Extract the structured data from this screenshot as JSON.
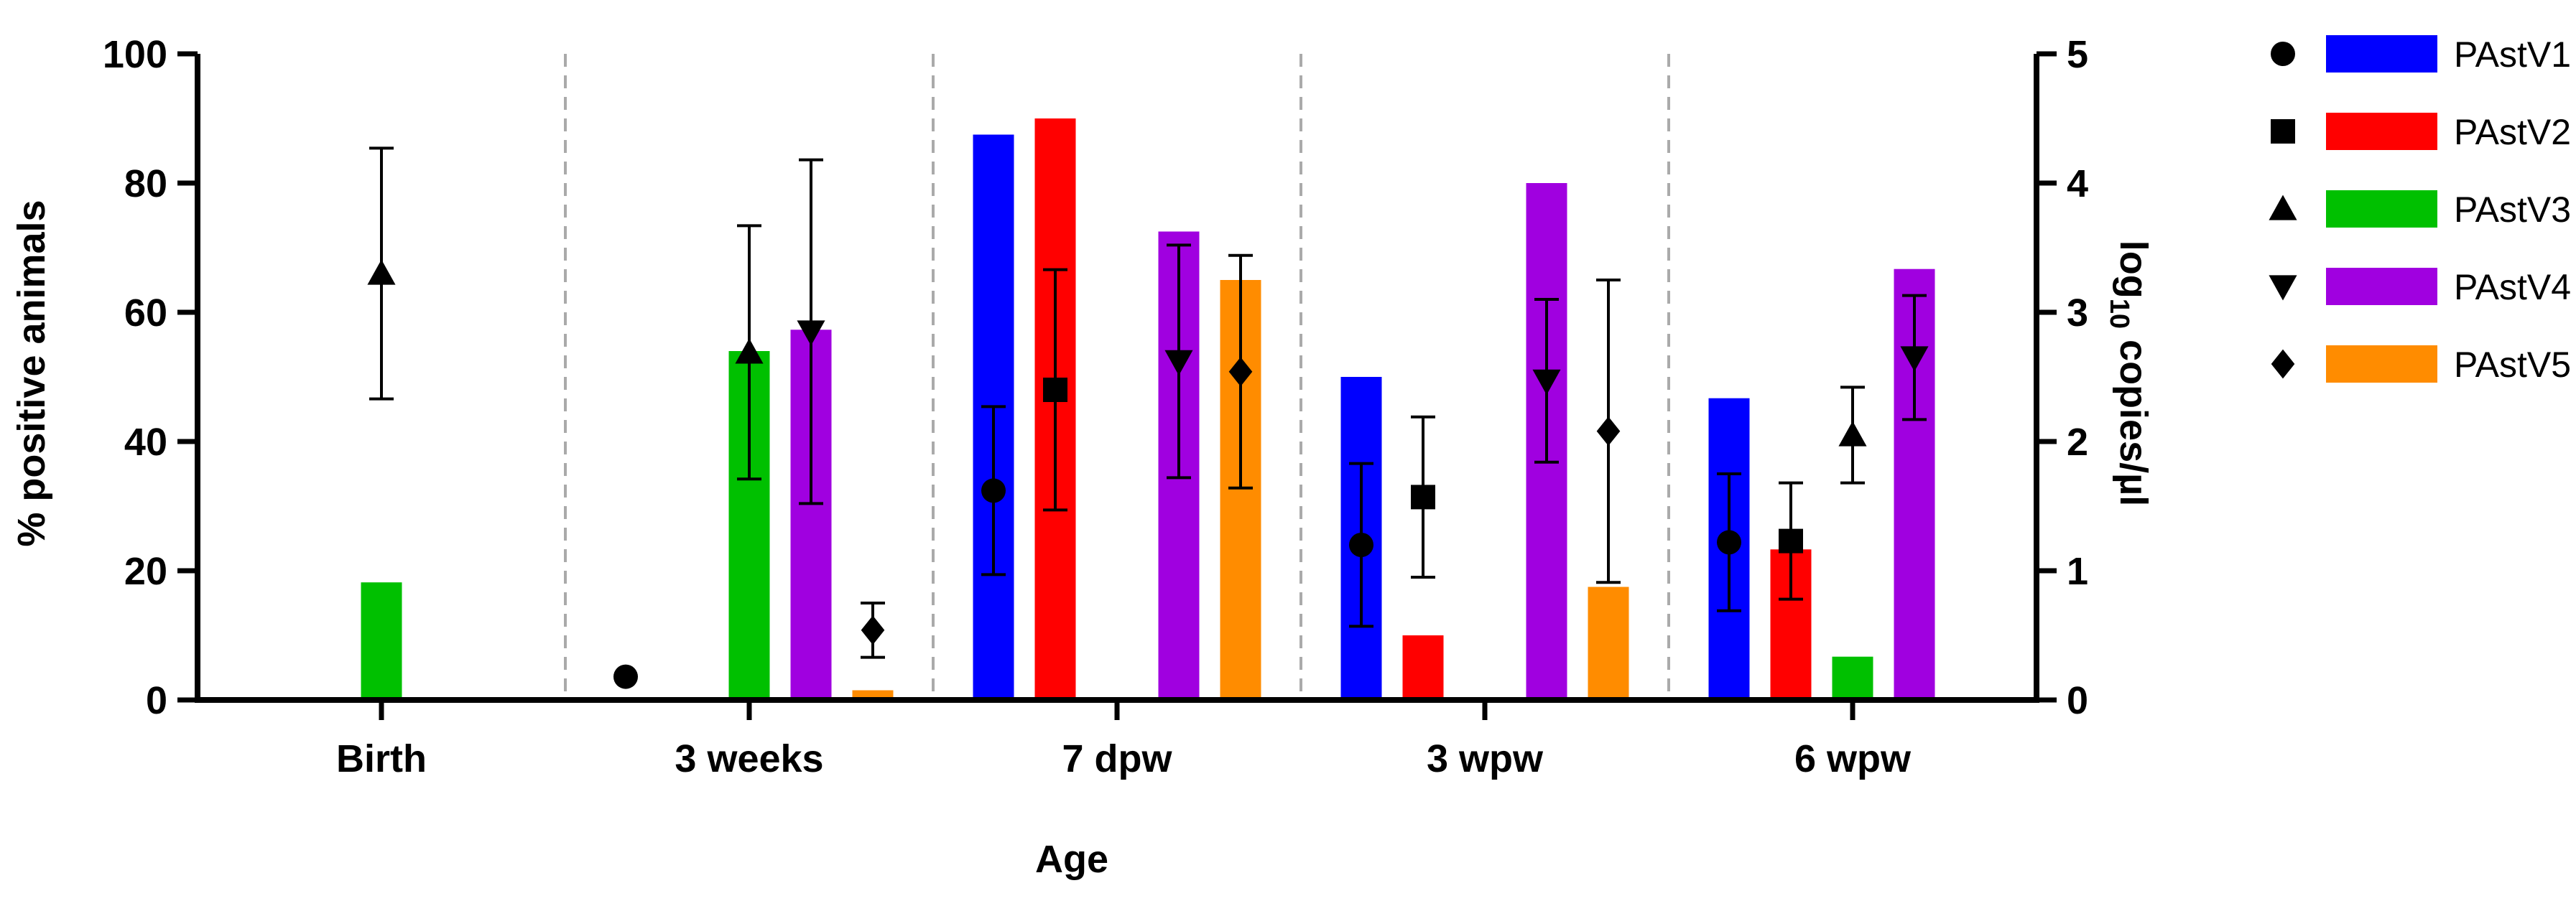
{
  "chart_data": {
    "type": "bar",
    "xlabel": "Age",
    "ylabel": "% positive animals",
    "y2label_base": "log",
    "y2label_sub": "10",
    "y2label_rest": " copies/µl",
    "categories": [
      "Birth",
      "3 weeks",
      "7 dpw",
      "3 wpw",
      "6 wpw"
    ],
    "ylim": [
      0,
      100
    ],
    "yticks": [
      0,
      20,
      40,
      60,
      80,
      100
    ],
    "y2lim": [
      0,
      5
    ],
    "y2ticks": [
      0,
      1,
      2,
      3,
      4,
      5
    ],
    "legend_position": "right",
    "series": [
      {
        "name": "PAstV1",
        "color": "#0000FF",
        "marker": "circle",
        "percent_positive": [
          0,
          0,
          87.5,
          50,
          46.7
        ],
        "log10_copies": [
          null,
          0.18,
          1.62,
          1.2,
          1.22
        ],
        "error": [
          null,
          0,
          0.65,
          0.63,
          0.53
        ]
      },
      {
        "name": "PAstV2",
        "color": "#FF0000",
        "marker": "square",
        "percent_positive": [
          0,
          0,
          90,
          10,
          23.3
        ],
        "log10_copies": [
          null,
          null,
          2.4,
          1.57,
          1.23
        ],
        "error": [
          null,
          null,
          0.93,
          0.62,
          0.45
        ]
      },
      {
        "name": "PAstV3",
        "color": "#00C000",
        "marker": "triangle-up",
        "percent_positive": [
          18.2,
          54,
          0,
          0,
          6.7
        ],
        "log10_copies": [
          3.3,
          2.69,
          null,
          null,
          2.05
        ],
        "error": [
          0.97,
          0.98,
          null,
          null,
          0.37
        ]
      },
      {
        "name": "PAstV4",
        "color": "#A000E0",
        "marker": "triangle-down",
        "percent_positive": [
          0,
          57.3,
          72.5,
          80,
          66.7
        ],
        "log10_copies": [
          null,
          2.85,
          2.62,
          2.47,
          2.65
        ],
        "error": [
          null,
          1.33,
          0.9,
          0.63,
          0.48
        ]
      },
      {
        "name": "PAstV5",
        "color": "#FF8C00",
        "marker": "diamond",
        "percent_positive": [
          0,
          1.5,
          65,
          17.5,
          0
        ],
        "log10_copies": [
          null,
          0.54,
          2.54,
          2.08,
          null
        ],
        "error": [
          null,
          0.21,
          0.9,
          1.17,
          null
        ]
      }
    ]
  }
}
